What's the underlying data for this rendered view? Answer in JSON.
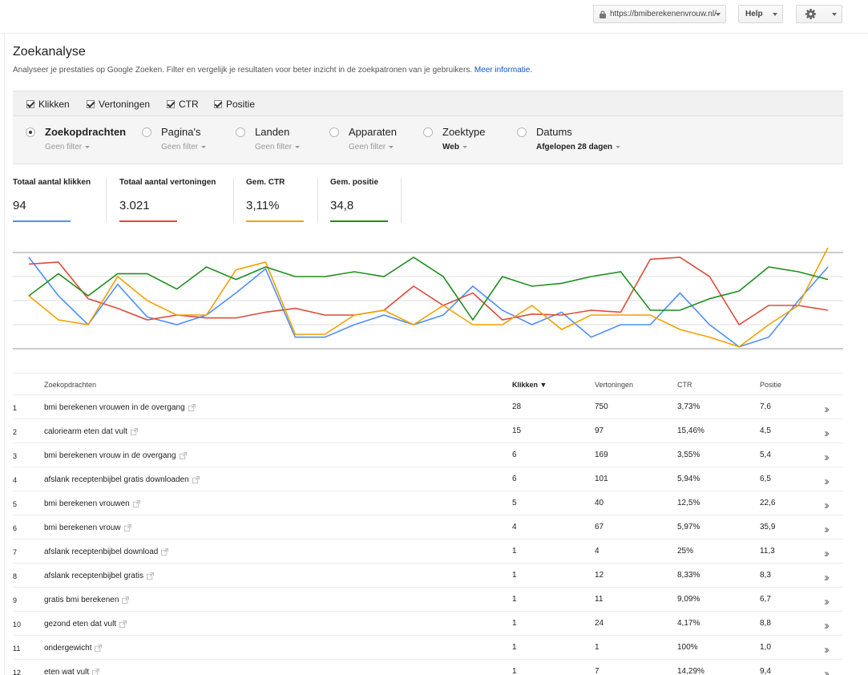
{
  "topbar": {
    "site": "https://bmiberekenenvrouw.nl/",
    "help": "Help"
  },
  "page": {
    "title": "Zoekanalyse",
    "description": "Analyseer je prestaties op Google Zoeken. Filter en vergelijk je resultaten voor beter inzicht in de zoekpatronen van je gebruikers.",
    "more_info": "Meer informatie."
  },
  "metrics": [
    {
      "label": "Klikken",
      "checked": true
    },
    {
      "label": "Vertoningen",
      "checked": true
    },
    {
      "label": "CTR",
      "checked": true
    },
    {
      "label": "Positie",
      "checked": true
    }
  ],
  "dimensions": [
    {
      "label": "Zoekopdrachten",
      "sub": "Geen filter",
      "selected": true
    },
    {
      "label": "Pagina's",
      "sub": "Geen filter",
      "selected": false
    },
    {
      "label": "Landen",
      "sub": "Geen filter",
      "selected": false
    },
    {
      "label": "Apparaten",
      "sub": "Geen filter",
      "selected": false
    },
    {
      "label": "Zoektype",
      "sub": "Web",
      "selected": false
    },
    {
      "label": "Datums",
      "sub": "Afgelopen 28 dagen",
      "selected": false
    }
  ],
  "totals": [
    {
      "label": "Totaal aantal klikken",
      "value": "94",
      "color": "#4d90fe"
    },
    {
      "label": "Totaal aantal vertoningen",
      "value": "3.021",
      "color": "#dd4b39"
    },
    {
      "label": "Gem. CTR",
      "value": "3,11%",
      "color": "#f4a100"
    },
    {
      "label": "Gem. positie",
      "value": "34,8",
      "color": "#1e8e1e"
    }
  ],
  "chart_data": {
    "type": "line",
    "x": [
      1,
      2,
      3,
      4,
      5,
      6,
      7,
      8,
      9,
      10,
      11,
      12,
      13,
      14,
      15,
      16,
      17,
      18,
      19,
      20,
      21,
      22,
      23,
      24,
      25,
      26,
      27,
      28
    ],
    "grid": true,
    "ylim": [
      0,
      100
    ],
    "series": [
      {
        "color": "#4d90fe",
        "values": [
          95,
          55,
          25,
          67,
          33,
          25,
          35,
          58,
          83,
          12,
          12,
          25,
          35,
          25,
          35,
          65,
          40,
          25,
          38,
          12,
          25,
          25,
          58,
          25,
          2,
          12,
          50,
          85
        ]
      },
      {
        "color": "#dd4b39",
        "values": [
          88,
          90,
          52,
          42,
          30,
          35,
          32,
          32,
          38,
          42,
          35,
          35,
          40,
          65,
          45,
          58,
          30,
          36,
          35,
          40,
          38,
          93,
          95,
          75,
          25,
          45,
          45,
          40
        ]
      },
      {
        "color": "#f4a100",
        "values": [
          55,
          30,
          25,
          75,
          50,
          35,
          35,
          82,
          90,
          15,
          15,
          35,
          40,
          25,
          45,
          25,
          25,
          45,
          20,
          35,
          35,
          35,
          20,
          12,
          2,
          25,
          45,
          105
        ]
      },
      {
        "color": "#1e8e1e",
        "values": [
          55,
          78,
          55,
          78,
          78,
          62,
          85,
          72,
          85,
          75,
          75,
          80,
          75,
          95,
          75,
          30,
          75,
          65,
          68,
          75,
          80,
          40,
          40,
          52,
          60,
          85,
          80,
          72
        ]
      }
    ]
  },
  "table": {
    "headers": {
      "query": "Zoekopdrachten",
      "clicks": "Klikken ▼",
      "impressions": "Vertoningen",
      "ctr": "CTR",
      "position": "Positie"
    },
    "rows": [
      {
        "num": "1",
        "query": "bmi berekenen vrouwen in de overgang",
        "clicks": "28",
        "impressions": "750",
        "ctr": "3,73%",
        "position": "7,6"
      },
      {
        "num": "2",
        "query": "caloriearm eten dat vult",
        "clicks": "15",
        "impressions": "97",
        "ctr": "15,46%",
        "position": "4,5"
      },
      {
        "num": "3",
        "query": "bmi berekenen vrouw in de overgang",
        "clicks": "6",
        "impressions": "169",
        "ctr": "3,55%",
        "position": "5,4"
      },
      {
        "num": "4",
        "query": "afslank receptenbijbel gratis downloaden",
        "clicks": "6",
        "impressions": "101",
        "ctr": "5,94%",
        "position": "6,5"
      },
      {
        "num": "5",
        "query": "bmi berekenen vrouwen",
        "clicks": "5",
        "impressions": "40",
        "ctr": "12,5%",
        "position": "22,6"
      },
      {
        "num": "6",
        "query": "bmi berekenen vrouw",
        "clicks": "4",
        "impressions": "67",
        "ctr": "5,97%",
        "position": "35,9"
      },
      {
        "num": "7",
        "query": "afslank receptenbijbel download",
        "clicks": "1",
        "impressions": "4",
        "ctr": "25%",
        "position": "11,3"
      },
      {
        "num": "8",
        "query": "afslank receptenbijbel gratis",
        "clicks": "1",
        "impressions": "12",
        "ctr": "8,33%",
        "position": "8,3"
      },
      {
        "num": "9",
        "query": "gratis bmi berekenen",
        "clicks": "1",
        "impressions": "11",
        "ctr": "9,09%",
        "position": "6,7"
      },
      {
        "num": "10",
        "query": "gezond eten dat vult",
        "clicks": "1",
        "impressions": "24",
        "ctr": "4,17%",
        "position": "8,8"
      },
      {
        "num": "11",
        "query": "ondergewicht",
        "clicks": "1",
        "impressions": "1",
        "ctr": "100%",
        "position": "1,0"
      },
      {
        "num": "12",
        "query": "eten wat vult",
        "clicks": "1",
        "impressions": "7",
        "ctr": "14,29%",
        "position": "9,4"
      }
    ]
  }
}
